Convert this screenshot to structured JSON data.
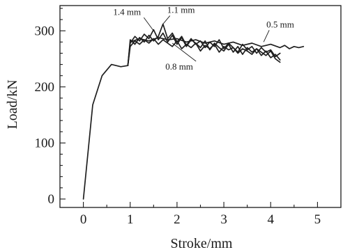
{
  "chart_data": {
    "type": "line",
    "xlabel": "Stroke/mm",
    "ylabel": "Load/kN",
    "xlim": [
      -0.5,
      5.5
    ],
    "ylim": [
      -15,
      345
    ],
    "xticks": [
      0,
      1,
      2,
      3,
      4,
      5
    ],
    "yticks": [
      0,
      100,
      200,
      300
    ],
    "grid": false,
    "legend": "none",
    "series": [
      {
        "name": "1.4 mm",
        "x": [
          0,
          0.2,
          0.4,
          0.6,
          0.8,
          0.95,
          1.0,
          1.1,
          1.2,
          1.3,
          1.4,
          1.5,
          1.6,
          1.7,
          1.8,
          1.9,
          2.0,
          2.1,
          2.2,
          2.3,
          2.4,
          2.5,
          2.6,
          2.7,
          2.8,
          2.9,
          3.0,
          3.1,
          3.2,
          3.3,
          3.4,
          3.5,
          3.6,
          3.7,
          3.8,
          3.9,
          4.0,
          4.1,
          4.2
        ],
        "y": [
          0,
          168,
          220,
          240,
          236,
          238,
          278,
          290,
          282,
          294,
          286,
          302,
          284,
          296,
          280,
          292,
          276,
          288,
          272,
          284,
          278,
          270,
          282,
          266,
          278,
          270,
          264,
          276,
          262,
          272,
          258,
          270,
          262,
          268,
          256,
          264,
          252,
          258,
          248
        ]
      },
      {
        "name": "1.1 mm",
        "x": [
          0.95,
          1.0,
          1.1,
          1.2,
          1.3,
          1.4,
          1.5,
          1.6,
          1.7,
          1.8,
          1.9,
          2.0,
          2.1,
          2.2,
          2.3,
          2.4,
          2.5,
          2.6,
          2.7,
          2.8,
          2.9,
          3.0,
          3.1,
          3.2,
          3.3,
          3.4,
          3.5,
          3.6,
          3.7,
          3.8,
          3.9,
          4.0,
          4.1,
          4.2
        ],
        "y": [
          238,
          284,
          276,
          288,
          280,
          292,
          282,
          290,
          312,
          286,
          296,
          280,
          290,
          274,
          286,
          276,
          282,
          270,
          280,
          272,
          284,
          268,
          278,
          270,
          262,
          276,
          266,
          272,
          260,
          270,
          262,
          266,
          254,
          260
        ]
      },
      {
        "name": "0.8 mm",
        "x": [
          0.95,
          1.0,
          1.1,
          1.2,
          1.3,
          1.4,
          1.5,
          1.6,
          1.7,
          1.8,
          1.9,
          2.0,
          2.1,
          2.2,
          2.3,
          2.4,
          2.5,
          2.6,
          2.7,
          2.8,
          2.9,
          3.0,
          3.1,
          3.2,
          3.3,
          3.4,
          3.5,
          3.6,
          3.7,
          3.8,
          3.9,
          4.0,
          4.1,
          4.2
        ],
        "y": [
          238,
          272,
          282,
          276,
          284,
          278,
          286,
          276,
          284,
          278,
          272,
          282,
          268,
          276,
          270,
          278,
          264,
          274,
          268,
          276,
          262,
          272,
          266,
          270,
          260,
          268,
          264,
          258,
          268,
          262,
          256,
          264,
          250,
          244
        ]
      },
      {
        "name": "0.5 mm",
        "x": [
          0.95,
          1.0,
          1.2,
          1.4,
          1.6,
          1.8,
          2.0,
          2.2,
          2.4,
          2.6,
          2.8,
          3.0,
          3.2,
          3.4,
          3.6,
          3.8,
          4.0,
          4.2,
          4.3,
          4.4,
          4.5,
          4.6,
          4.7
        ],
        "y": [
          238,
          280,
          286,
          282,
          288,
          284,
          286,
          280,
          284,
          278,
          282,
          276,
          280,
          274,
          278,
          272,
          276,
          270,
          274,
          268,
          272,
          270,
          272
        ]
      }
    ],
    "annotations": [
      {
        "text": "1.4 mm",
        "x": 1.5,
        "y": 300
      },
      {
        "text": "1.1 mm",
        "x": 1.7,
        "y": 312
      },
      {
        "text": "0.5 mm",
        "x": 3.85,
        "y": 280
      },
      {
        "text": "0.8 mm",
        "x": 1.9,
        "y": 278
      }
    ]
  }
}
